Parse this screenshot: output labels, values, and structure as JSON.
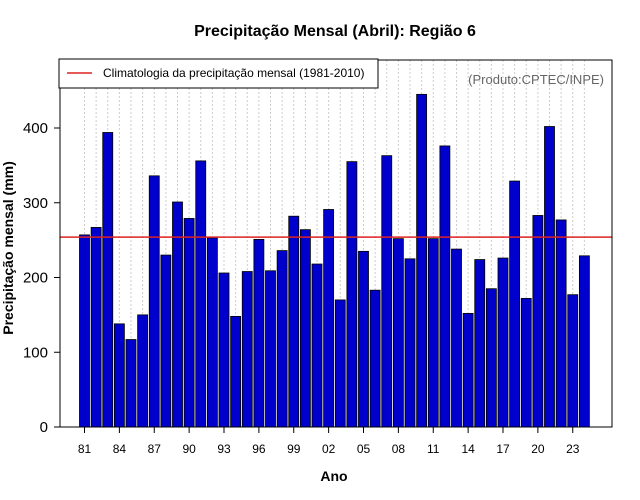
{
  "chart_data": {
    "type": "bar",
    "title": "Precipitação Mensal (Abril): Região 6",
    "xlabel": "Ano",
    "ylabel": "Precipitação mensal (mm)",
    "credit": "(Produto:CPTEC/INPE)",
    "legend": {
      "label": "Climatologia da precipitação mensal (1981-2010)",
      "placement": "top-left"
    },
    "climatology": 254,
    "ylim": [
      0,
      490
    ],
    "yticks": [
      0,
      100,
      200,
      300,
      400
    ],
    "tick_labels": [
      "81",
      "84",
      "87",
      "90",
      "93",
      "96",
      "99",
      "02",
      "05",
      "08",
      "11",
      "14",
      "17",
      "20",
      "23"
    ],
    "tick_years": [
      1981,
      1984,
      1987,
      1990,
      1993,
      1996,
      1999,
      2002,
      2005,
      2008,
      2011,
      2014,
      2017,
      2020,
      2023
    ],
    "categories": [
      1981,
      1982,
      1983,
      1984,
      1985,
      1986,
      1987,
      1988,
      1989,
      1990,
      1991,
      1992,
      1993,
      1994,
      1995,
      1996,
      1997,
      1998,
      1999,
      2000,
      2001,
      2002,
      2003,
      2004,
      2005,
      2006,
      2007,
      2008,
      2009,
      2010,
      2011,
      2012,
      2013,
      2014,
      2015,
      2016,
      2017,
      2018,
      2019,
      2020,
      2021,
      2022,
      2023,
      2024
    ],
    "values": [
      257,
      267,
      394,
      138,
      117,
      150,
      336,
      230,
      301,
      279,
      356,
      253,
      206,
      148,
      208,
      251,
      209,
      236,
      282,
      264,
      218,
      291,
      170,
      355,
      235,
      183,
      363,
      252,
      225,
      445,
      252,
      376,
      238,
      152,
      224,
      185,
      226,
      329,
      172,
      283,
      402,
      277,
      177,
      229
    ],
    "colors": {
      "bar_fill": "#0000cc",
      "bar_stroke": "#000000",
      "climatology_line": "#dd2222",
      "grid": "#cccccc"
    }
  }
}
